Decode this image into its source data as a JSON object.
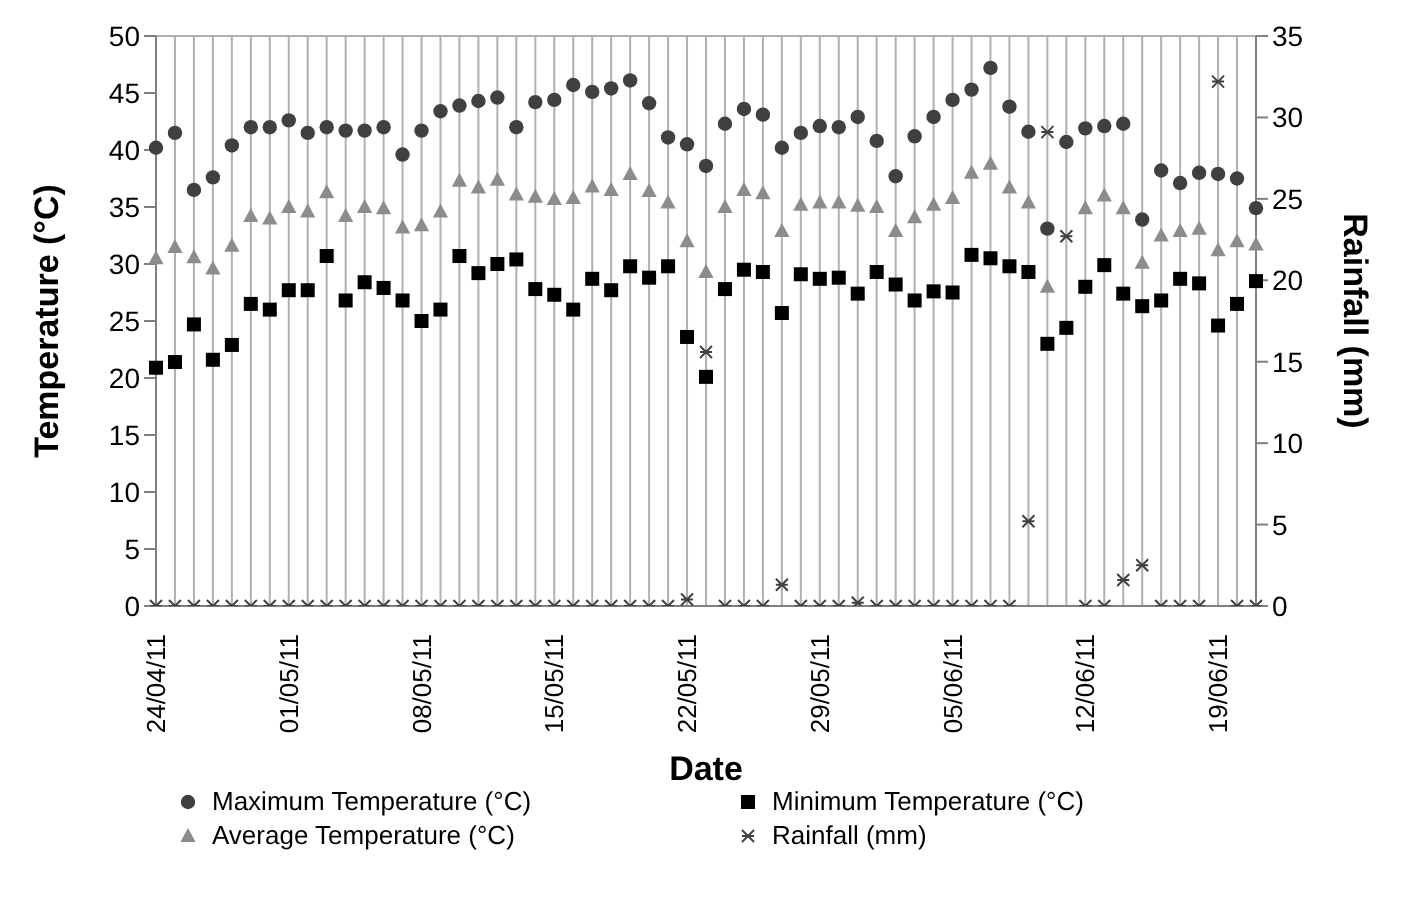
{
  "chart_data": {
    "type": "scatter",
    "xlabel": "Date",
    "ylabel": "Temperature (°C)",
    "y2label": "Rainfall (mm)",
    "categories": [
      "24/04/11",
      null,
      null,
      null,
      null,
      null,
      null,
      "01/05/11",
      null,
      null,
      null,
      null,
      null,
      null,
      "08/05/11",
      null,
      null,
      null,
      null,
      null,
      null,
      "15/05/11",
      null,
      null,
      null,
      null,
      null,
      null,
      "22/05/11",
      null,
      null,
      null,
      null,
      null,
      null,
      "29/05/11",
      null,
      null,
      null,
      null,
      null,
      null,
      "05/06/11",
      null,
      null,
      null,
      null,
      null,
      null,
      "12/06/11",
      null,
      null,
      null,
      null,
      null,
      null,
      "19/06/11",
      null,
      null
    ],
    "series": [
      {
        "name": "Maximum Temperature (°C)",
        "color": "#404040",
        "marker": "circle",
        "values": [
          40.2,
          41.5,
          36.5,
          37.6,
          40.4,
          42.0,
          42.0,
          42.6,
          41.5,
          42.0,
          41.7,
          41.7,
          42.0,
          39.6,
          41.7,
          43.4,
          43.9,
          44.3,
          44.6,
          42.0,
          44.2,
          44.4,
          45.7,
          45.1,
          45.4,
          46.1,
          44.1,
          41.1,
          40.5,
          38.6,
          42.3,
          43.6,
          43.1,
          40.2,
          41.5,
          42.1,
          42.0,
          42.9,
          40.8,
          37.7,
          41.2,
          42.9,
          44.4,
          45.3,
          47.2,
          43.8,
          41.6,
          33.1,
          40.7,
          41.9,
          42.1,
          42.3,
          33.9,
          38.2,
          37.1,
          38.0,
          37.9,
          37.5,
          34.9
        ]
      },
      {
        "name": "Minimum Temperature (°C)",
        "color": "#000000",
        "marker": "square",
        "values": [
          20.9,
          21.4,
          24.7,
          21.6,
          22.9,
          26.5,
          26.0,
          27.7,
          27.7,
          30.7,
          26.8,
          28.4,
          27.9,
          26.8,
          25.0,
          26.0,
          30.7,
          29.2,
          30.0,
          30.4,
          27.8,
          27.3,
          26.0,
          28.7,
          27.7,
          29.8,
          28.8,
          29.8,
          23.6,
          20.1,
          27.8,
          29.5,
          29.3,
          25.7,
          29.1,
          28.7,
          28.8,
          27.4,
          29.3,
          28.2,
          26.8,
          27.6,
          27.5,
          30.8,
          30.5,
          29.8,
          29.3,
          23.0,
          24.4,
          28.0,
          29.9,
          27.4,
          26.3,
          26.8,
          28.7,
          28.3,
          24.6,
          26.5,
          28.5
        ]
      },
      {
        "name": "Average Temperature (°C)",
        "color": "#8c8c8c",
        "marker": "triangle",
        "values": [
          30.5,
          31.5,
          30.6,
          29.6,
          31.6,
          34.2,
          34.0,
          35.0,
          34.6,
          36.3,
          34.2,
          35.0,
          34.9,
          33.2,
          33.4,
          34.6,
          37.3,
          36.7,
          37.4,
          36.1,
          35.9,
          35.7,
          35.8,
          36.8,
          36.5,
          37.9,
          36.4,
          35.4,
          32.0,
          29.3,
          35.0,
          36.5,
          36.2,
          32.9,
          35.2,
          35.4,
          35.4,
          35.1,
          35.0,
          32.9,
          34.1,
          35.2,
          35.8,
          38.0,
          38.8,
          36.7,
          35.4,
          28.0,
          null,
          34.9,
          36.0,
          34.9,
          30.1,
          32.5,
          32.9,
          33.1,
          31.2,
          32.0,
          31.7
        ]
      },
      {
        "name": "Rainfall (mm)",
        "color": "#404040",
        "marker": "cross",
        "axis": "y2",
        "values": [
          0,
          0,
          0,
          0,
          0,
          0,
          0,
          0,
          0,
          0,
          0,
          0,
          0,
          0,
          0,
          0,
          0,
          0,
          0,
          0,
          0,
          0,
          0,
          0,
          0,
          0,
          0,
          0,
          0.4,
          15.6,
          0,
          0,
          0,
          1.3,
          0,
          0,
          0,
          0.2,
          0,
          0,
          0,
          0,
          0,
          0,
          0,
          0,
          5.2,
          29.1,
          22.7,
          0,
          0,
          1.6,
          2.5,
          0,
          0,
          0,
          32.2,
          0,
          0
        ]
      }
    ],
    "ylim": [
      0,
      50
    ],
    "yticks": [
      0,
      5,
      10,
      15,
      20,
      25,
      30,
      35,
      40,
      45,
      50
    ],
    "y2lim": [
      0,
      35
    ],
    "y2ticks": [
      0,
      5,
      10,
      15,
      20,
      25,
      30,
      35
    ],
    "grid": true,
    "legend": "bottom"
  }
}
